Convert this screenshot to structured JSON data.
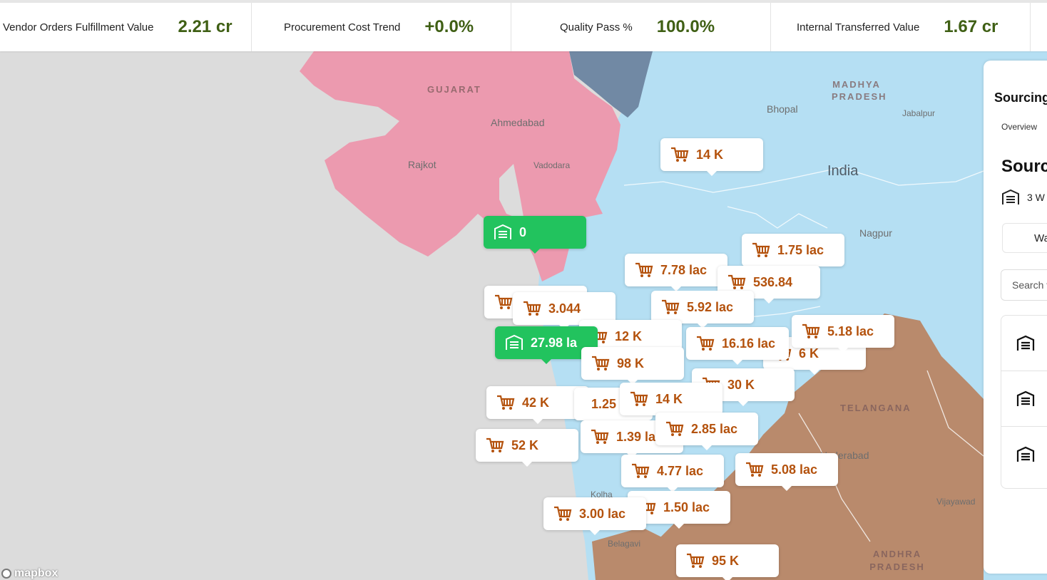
{
  "kpis": [
    {
      "label": "Vendor Orders Fulfillment Value",
      "value": "2.21 cr"
    },
    {
      "label": "Procurement Cost Trend",
      "value": "+0.0%"
    },
    {
      "label": "Quality Pass %",
      "value": "100.0%"
    },
    {
      "label": "Internal Transferred Value",
      "value": "1.67 cr"
    }
  ],
  "map": {
    "region_labels": [
      "GUJARAT",
      "MADHYA PRADESH",
      "TELANGANA",
      "ANDHRA PRADESH"
    ],
    "city_labels": [
      "Ahmedabad",
      "Rajkot",
      "Vadodara",
      "Bhopal",
      "Jabalpur",
      "Nagpur",
      "Hyderabad",
      "Belagavi",
      "Kolha",
      "Vijayawad"
    ],
    "country_label": "India",
    "attribution": "mapbox",
    "warehouse_markers": [
      "0",
      "27.98 la"
    ],
    "vendor_markers": [
      "14 K",
      "1.75 lac",
      "7.78 lac",
      "536.84",
      "3.044",
      "5.92 lac",
      "12 K",
      "16.16 lac",
      "5.18 lac",
      "6 K",
      "98 K",
      "30 K",
      "42 K",
      "1.25",
      "14 K",
      "2.85 lac",
      "52 K",
      "1.39 lac",
      "4.77 lac",
      "5.08 lac",
      "1.50 lac",
      "3.00 lac",
      "95 K"
    ],
    "colors": {
      "gujarat": "#ec9aaf",
      "blue_state": "#b5dff3",
      "dark_state": "#7189a4",
      "brown_state": "#b98a6c",
      "sea": "#dcdcdc",
      "marker_value": "#b4520d",
      "warehouse": "#22c35e"
    }
  },
  "panel": {
    "title": "Sourcing",
    "tab": "Overview",
    "subtitle": "Sourc",
    "warehouse_count": "3 W",
    "toggle_label": "Wa",
    "search_placeholder": "Search v"
  }
}
